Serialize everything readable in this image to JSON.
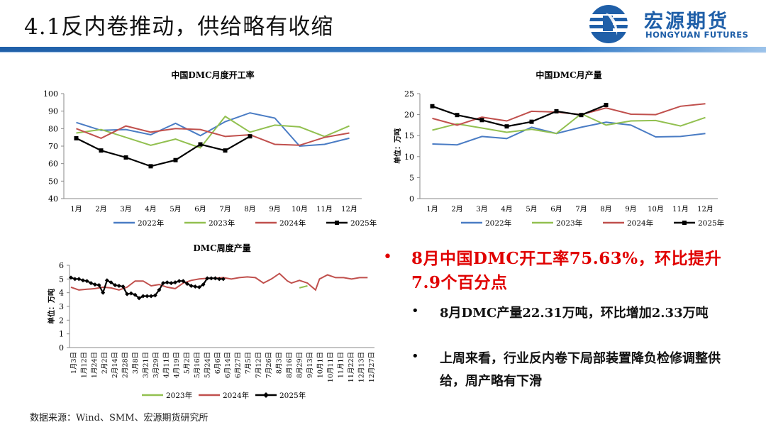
{
  "page": {
    "title": "4.1反内卷推动，供给略有收缩",
    "logo_cn": "宏源期货",
    "logo_en": "HONGYUAN FUTURES",
    "source": "数据来源：Wind、SMM、宏源期货研究所"
  },
  "bullets": {
    "main": "8月中国DMC开工率75.63%，环比提升7.9个百分点",
    "sub1": "8月DMC产量22.31万吨，环比增加2.33万吨",
    "sub2": "上周来看，行业反内卷下局部装置降负检修调整供给，周产略有下滑"
  },
  "colors": {
    "y2022": "#4a7cc4",
    "y2023": "#92c050",
    "y2024": "#c0504d",
    "y2025": "#000000",
    "accent_red": "#e00000",
    "brand_blue": "#1f5fa8"
  },
  "chart_data": [
    {
      "type": "line",
      "title": "中国DMC月度开工率",
      "categories": [
        "1月",
        "2月",
        "3月",
        "4月",
        "5月",
        "6月",
        "7月",
        "8月",
        "9月",
        "10月",
        "11月",
        "12月"
      ],
      "ylim": [
        40,
        100
      ],
      "yticks": [
        40,
        50,
        60,
        70,
        80,
        90,
        100
      ],
      "ylabel": "",
      "legend_position": "bottom",
      "series": [
        {
          "name": "2022年",
          "color_key": "y2022",
          "marker": false,
          "values": [
            83.5,
            79,
            79.5,
            76.5,
            83,
            76,
            84,
            89,
            86,
            70,
            71,
            74.5
          ]
        },
        {
          "name": "2023年",
          "color_key": "y2023",
          "marker": false,
          "values": [
            77.5,
            79.5,
            75,
            70.5,
            74,
            69,
            87,
            78,
            82,
            81,
            75.5,
            81.5
          ]
        },
        {
          "name": "2024年",
          "color_key": "y2024",
          "marker": false,
          "values": [
            80,
            74.5,
            81.5,
            78,
            80,
            79.5,
            75.5,
            76.5,
            71,
            70.5,
            75,
            77.5
          ]
        },
        {
          "name": "2025年",
          "color_key": "y2025",
          "marker": true,
          "values": [
            74.5,
            67.5,
            63.5,
            58.5,
            62,
            71,
            67.5,
            75.6,
            null,
            null,
            null,
            null
          ]
        }
      ]
    },
    {
      "type": "line",
      "title": "中国DMC月产量",
      "categories": [
        "1月",
        "2月",
        "3月",
        "4月",
        "5月",
        "6月",
        "7月",
        "8月",
        "9月",
        "10月",
        "11月",
        "12月"
      ],
      "ylim": [
        0,
        25
      ],
      "yticks": [
        0,
        5,
        10,
        15,
        20,
        25
      ],
      "ylabel": "单位：万吨",
      "legend_position": "bottom",
      "series": [
        {
          "name": "2022年",
          "color_key": "y2022",
          "marker": false,
          "values": [
            13,
            12.8,
            14.8,
            14.3,
            17,
            15.5,
            17,
            18.2,
            17.5,
            14.7,
            14.8,
            15.5
          ]
        },
        {
          "name": "2023年",
          "color_key": "y2023",
          "marker": false,
          "values": [
            16.3,
            17.8,
            16.8,
            15.8,
            16.5,
            15.5,
            20.2,
            17.5,
            18.5,
            18.6,
            17.3,
            19.3
          ]
        },
        {
          "name": "2024年",
          "color_key": "y2024",
          "marker": false,
          "values": [
            19.1,
            17.5,
            19.4,
            18.5,
            20.8,
            20.6,
            20,
            21.6,
            20.1,
            20,
            22,
            22.6
          ]
        },
        {
          "name": "2025年",
          "color_key": "y2025",
          "marker": true,
          "values": [
            22,
            19.9,
            18.7,
            17.2,
            18.3,
            20.8,
            19.9,
            22.3,
            null,
            null,
            null,
            null
          ]
        }
      ]
    },
    {
      "type": "line",
      "title": "DMC周度产量",
      "categories": [
        "1月3日",
        "1月12日",
        "1月24日",
        "2月2日",
        "2月14日",
        "2月28日",
        "3月8日",
        "3月21日",
        "3月29日",
        "4月11日",
        "4月19日",
        "5月2日",
        "5月16日",
        "5月24日",
        "6月6日",
        "6月14日",
        "6月27日",
        "7月5日",
        "7月12日",
        "7月26日",
        "8月3日",
        "8月16日",
        "8月29日",
        "9月13日",
        "10月1日",
        "10月11日",
        "11月1日",
        "11月22日",
        "12月13日",
        "12月27日"
      ],
      "ylim": [
        0,
        6
      ],
      "yticks": [
        0,
        1,
        2,
        3,
        4,
        5,
        6
      ],
      "ylabel": "单位：万吨",
      "legend_position": "bottom",
      "series": [
        {
          "name": "2023年",
          "color_key": "y2023",
          "marker": false,
          "points": [
            [
              57,
              4.35
            ],
            [
              59,
              4.5
            ]
          ]
        },
        {
          "name": "2024年",
          "color_key": "y2024",
          "marker": false,
          "points": [
            [
              0,
              4.4
            ],
            [
              2,
              4.2
            ],
            [
              4,
              4.25
            ],
            [
              6,
              4.3
            ],
            [
              8,
              4.4
            ],
            [
              10,
              4.35
            ],
            [
              12,
              4.2
            ],
            [
              14,
              4.4
            ],
            [
              16,
              4.85
            ],
            [
              18,
              4.85
            ],
            [
              20,
              4.5
            ],
            [
              22,
              4.6
            ],
            [
              24,
              4.4
            ],
            [
              26,
              4.3
            ],
            [
              28,
              4.7
            ],
            [
              30,
              4.9
            ],
            [
              32,
              5.0
            ],
            [
              34,
              5.05
            ],
            [
              36,
              5.05
            ],
            [
              38,
              5.1
            ],
            [
              40,
              5.0
            ],
            [
              42,
              5.1
            ],
            [
              44,
              5.15
            ],
            [
              46,
              5.1
            ],
            [
              48,
              4.7
            ],
            [
              50,
              5.0
            ],
            [
              52,
              5.4
            ],
            [
              54,
              4.85
            ],
            [
              55,
              4.7
            ],
            [
              57,
              4.9
            ],
            [
              59,
              4.7
            ],
            [
              61,
              4.2
            ],
            [
              62,
              5.0
            ],
            [
              64,
              5.3
            ],
            [
              66,
              5.1
            ],
            [
              68,
              5.1
            ],
            [
              70,
              5.0
            ],
            [
              72,
              5.1
            ],
            [
              74,
              5.1
            ]
          ]
        },
        {
          "name": "2025年",
          "color_key": "y2025",
          "marker": true,
          "points": [
            [
              0,
              5.1
            ],
            [
              1,
              5.0
            ],
            [
              2,
              5.0
            ],
            [
              3,
              4.9
            ],
            [
              4,
              4.85
            ],
            [
              5,
              4.7
            ],
            [
              6,
              4.6
            ],
            [
              7,
              4.55
            ],
            [
              8,
              4.0
            ],
            [
              9,
              4.9
            ],
            [
              10,
              4.75
            ],
            [
              11,
              4.55
            ],
            [
              12,
              4.5
            ],
            [
              13,
              4.45
            ],
            [
              14,
              3.9
            ],
            [
              15,
              3.95
            ],
            [
              16,
              3.85
            ],
            [
              17,
              3.6
            ],
            [
              18,
              3.75
            ],
            [
              19,
              3.75
            ],
            [
              20,
              3.75
            ],
            [
              21,
              3.8
            ],
            [
              22,
              4.2
            ],
            [
              23,
              4.7
            ],
            [
              24,
              4.75
            ],
            [
              25,
              4.7
            ],
            [
              26,
              4.75
            ],
            [
              27,
              4.85
            ],
            [
              28,
              4.85
            ],
            [
              29,
              4.65
            ],
            [
              30,
              4.5
            ],
            [
              31,
              4.45
            ],
            [
              32,
              4.4
            ],
            [
              33,
              4.6
            ],
            [
              34,
              5.05
            ],
            [
              35,
              5.05
            ],
            [
              36,
              5.05
            ],
            [
              37,
              5.0
            ],
            [
              38,
              5.0
            ]
          ]
        }
      ]
    }
  ]
}
